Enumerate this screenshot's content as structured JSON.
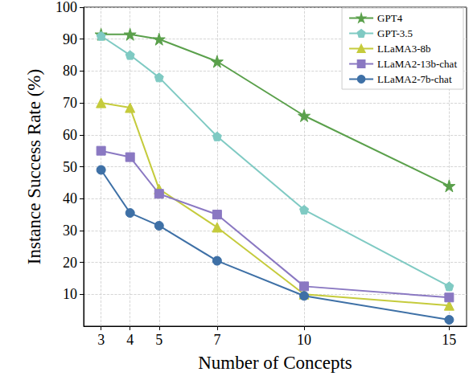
{
  "chart_data": {
    "type": "line",
    "x_label": "Number of Concepts",
    "y_label": "Instance Success Rate (%)",
    "xlim": [
      2.4,
      15.6
    ],
    "xticks": [
      3,
      4,
      5,
      7,
      10,
      15
    ],
    "ylim": [
      0,
      100
    ],
    "yticks": [
      10,
      20,
      30,
      40,
      50,
      60,
      70,
      80,
      90,
      100
    ],
    "grid": true,
    "legend": "upper right",
    "x": [
      3,
      4,
      5,
      7,
      10,
      15
    ],
    "series": [
      {
        "name": "GPT4",
        "color": "#5aa04b",
        "marker": "star",
        "values": [
          91.5,
          91.5,
          90,
          83,
          66,
          44
        ]
      },
      {
        "name": "GPT-3.5",
        "color": "#7fcac3",
        "marker": "pentagon",
        "values": [
          91,
          85,
          78,
          59.5,
          36.5,
          12.5
        ]
      },
      {
        "name": "LLaMA3-8b",
        "color": "#c5cb3c",
        "marker": "triangle",
        "values": [
          70,
          68.5,
          43,
          31,
          10,
          6.5
        ]
      },
      {
        "name": "LLaMA2-13b-chat",
        "color": "#8a78c2",
        "marker": "square",
        "values": [
          55,
          53,
          41.5,
          35,
          12.5,
          9
        ]
      },
      {
        "name": "LLaMA2-7b-chat",
        "color": "#3e70a6",
        "marker": "circle",
        "values": [
          49,
          35.5,
          31.5,
          20.5,
          9.5,
          2
        ]
      }
    ]
  }
}
